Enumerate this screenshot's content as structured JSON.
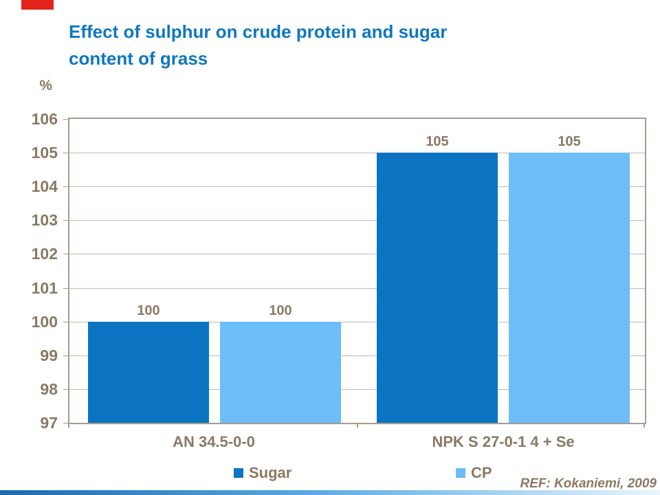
{
  "title": {
    "line1": "Effect of sulphur on crude protein and sugar",
    "line2": "content of grass",
    "color": "#0E76C4"
  },
  "axis": {
    "unit_label": "%"
  },
  "footer": {
    "ref": "REF: Kokaniemi, 2009"
  },
  "colors": {
    "text_brown": "#8A7963",
    "frame": "#A89B8A",
    "gridline": "#C4B8A8",
    "red_accent": "#E32219",
    "bottom_gradient_left": "#1A6AB2",
    "bottom_gradient_mid": "#55A7E0",
    "bottom_gradient_right": "#E8F5FD"
  },
  "chart_data": {
    "type": "bar",
    "title": "Effect of sulphur on crude protein and sugar content of grass",
    "ylabel": "%",
    "xlabel": "",
    "categories": [
      "AN 34.5-0-0",
      "NPK S 27-0-1 4 + Se"
    ],
    "series": [
      {
        "name": "Sugar",
        "color": "#0B74C2",
        "values": [
          100,
          105
        ]
      },
      {
        "name": "CP",
        "color": "#6CBDF8",
        "values": [
          100,
          105
        ]
      }
    ],
    "ylim": [
      97,
      106
    ],
    "ytick_step": 1,
    "grid": true,
    "legend_position": "bottom",
    "annotation": "REF: Kokaniemi, 2009"
  }
}
